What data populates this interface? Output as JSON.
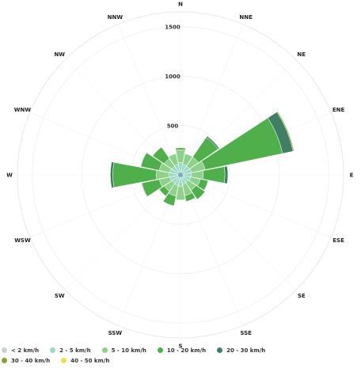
{
  "chart_data": {
    "type": "polar-stacked-bar",
    "title": "",
    "directions": [
      "N",
      "NNE",
      "NE",
      "ENE",
      "E",
      "ESE",
      "SE",
      "SSE",
      "S",
      "SSW",
      "SW",
      "WSW",
      "W",
      "WNW",
      "NW",
      "NNW"
    ],
    "ring_ticks": [
      "500",
      "1000",
      "1500"
    ],
    "rmax": 1650,
    "series": [
      {
        "name": "< 2 km/h",
        "color": "#c8d2cc",
        "values": [
          15,
          15,
          15,
          15,
          15,
          15,
          15,
          15,
          15,
          15,
          15,
          15,
          15,
          15,
          15,
          15
        ]
      },
      {
        "name": "2 - 5 km/h",
        "color": "#9ad9c4",
        "values": [
          110,
          95,
          95,
          100,
          95,
          90,
          80,
          85,
          100,
          95,
          90,
          95,
          100,
          95,
          90,
          95
        ]
      },
      {
        "name": "5 - 10 km/h",
        "color": "#8fd18a",
        "values": [
          130,
          110,
          110,
          140,
          120,
          100,
          95,
          115,
          140,
          110,
          95,
          110,
          130,
          110,
          95,
          110
        ]
      },
      {
        "name": "10 - 20 km/h",
        "color": "#4faf4a",
        "values": [
          20,
          0,
          240,
          800,
          220,
          80,
          110,
          60,
          0,
          100,
          60,
          180,
          440,
          190,
          140,
          0
        ]
      },
      {
        "name": "20 - 30 km/h",
        "color": "#3f7f65",
        "values": [
          0,
          0,
          15,
          110,
          30,
          0,
          0,
          0,
          0,
          0,
          0,
          5,
          25,
          0,
          0,
          0
        ]
      },
      {
        "name": "30 - 40 km/h",
        "color": "#8aa036",
        "values": [
          0,
          0,
          0,
          10,
          0,
          0,
          0,
          0,
          0,
          0,
          0,
          0,
          0,
          0,
          0,
          0
        ]
      },
      {
        "name": "40 - 50 km/h",
        "color": "#e6e34a",
        "values": [
          0,
          0,
          0,
          5,
          0,
          0,
          0,
          0,
          0,
          0,
          0,
          0,
          0,
          0,
          0,
          0
        ]
      }
    ],
    "grid": true,
    "legend_position": "bottom"
  }
}
